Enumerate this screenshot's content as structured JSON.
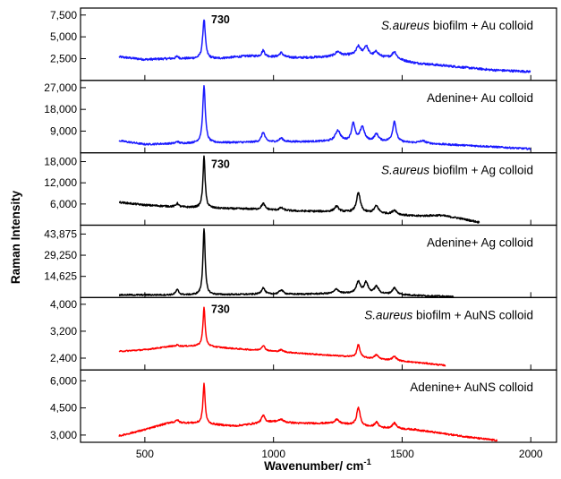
{
  "chart_data": {
    "type": "line",
    "xlabel": "Wavenumber/ cm",
    "xlabel_superscript": "-1",
    "ylabel": "Raman Intensity",
    "x_ticks": [
      500,
      1000,
      1500,
      2000
    ],
    "xlim": [
      250,
      2100
    ],
    "grid": false,
    "panels": [
      {
        "label_italic": "S.aureus",
        "label": " biofilm + Au colloid",
        "peak_label": "730",
        "color": "#1a1aff",
        "ylim": [
          0,
          8300
        ],
        "y_ticks": [
          2500,
          5000,
          7500
        ],
        "y_tick_labels": [
          "2,500",
          "5,000",
          "7,500"
        ],
        "baseline": [
          [
            400,
            2700
          ],
          [
            500,
            2400
          ],
          [
            600,
            2500
          ],
          [
            700,
            2500
          ],
          [
            780,
            2500
          ],
          [
            900,
            2800
          ],
          [
            1100,
            2600
          ],
          [
            1200,
            2700
          ],
          [
            1300,
            2900
          ],
          [
            1450,
            2600
          ],
          [
            1550,
            2000
          ],
          [
            1700,
            1600
          ],
          [
            1850,
            1200
          ],
          [
            2000,
            1000
          ]
        ],
        "peaks": [
          [
            730,
            4500,
            6
          ],
          [
            626,
            250,
            6
          ],
          [
            960,
            700,
            7
          ],
          [
            1030,
            500,
            9
          ],
          [
            1250,
            500,
            12
          ],
          [
            1330,
            1000,
            10
          ],
          [
            1360,
            1100,
            10
          ],
          [
            1400,
            550,
            10
          ],
          [
            1470,
            800,
            10
          ]
        ],
        "noise": 120
      },
      {
        "label_italic": "",
        "label": "Adenine+ Au colloid",
        "peak_label": "",
        "color": "#1a1aff",
        "ylim": [
          0,
          30000
        ],
        "y_ticks": [
          9000,
          18000,
          27000
        ],
        "y_tick_labels": [
          "9,000",
          "18,000",
          "27,000"
        ],
        "baseline": [
          [
            400,
            5000
          ],
          [
            500,
            3500
          ],
          [
            600,
            3800
          ],
          [
            800,
            4200
          ],
          [
            1000,
            4500
          ],
          [
            1200,
            4700
          ],
          [
            1450,
            4600
          ],
          [
            1600,
            3800
          ],
          [
            1800,
            2800
          ],
          [
            2000,
            1600
          ]
        ],
        "peaks": [
          [
            730,
            23500,
            6
          ],
          [
            626,
            800,
            6
          ],
          [
            960,
            4000,
            8
          ],
          [
            1030,
            1500,
            9
          ],
          [
            1250,
            4500,
            12
          ],
          [
            1310,
            7500,
            8
          ],
          [
            1345,
            6000,
            10
          ],
          [
            1400,
            3000,
            10
          ],
          [
            1470,
            8500,
            8
          ],
          [
            1580,
            1000,
            15
          ]
        ],
        "noise": 350
      },
      {
        "label_italic": "S.aureus",
        "label": " biofilm + Ag colloid",
        "peak_label": "730",
        "color": "#000000",
        "ylim": [
          0,
          20500
        ],
        "y_ticks": [
          6000,
          12000,
          18000
        ],
        "y_tick_labels": [
          "6,000",
          "12,000",
          "18,000"
        ],
        "baseline": [
          [
            400,
            6500
          ],
          [
            500,
            5700
          ],
          [
            620,
            5200
          ],
          [
            760,
            4800
          ],
          [
            900,
            4600
          ],
          [
            1100,
            4000
          ],
          [
            1250,
            3800
          ],
          [
            1400,
            3400
          ],
          [
            1550,
            2600
          ],
          [
            1650,
            2800
          ],
          [
            1720,
            2000
          ],
          [
            1800,
            800
          ]
        ],
        "peaks": [
          [
            730,
            14500,
            5
          ],
          [
            626,
            1000,
            6
          ],
          [
            960,
            1700,
            8
          ],
          [
            1030,
            700,
            9
          ],
          [
            1245,
            1500,
            10
          ],
          [
            1330,
            5500,
            9
          ],
          [
            1400,
            2000,
            10
          ],
          [
            1470,
            1200,
            10
          ]
        ],
        "noise": 250
      },
      {
        "label_italic": "",
        "label": "Adenine+ Ag colloid",
        "peak_label": "",
        "color": "#000000",
        "ylim": [
          0,
          50000
        ],
        "y_ticks": [
          14625,
          29250,
          43875
        ],
        "y_tick_labels": [
          "14,625",
          "29,250",
          "43,875"
        ],
        "baseline": [
          [
            400,
            1800
          ],
          [
            700,
            1800
          ],
          [
            900,
            2200
          ],
          [
            1100,
            2300
          ],
          [
            1250,
            2800
          ],
          [
            1400,
            2500
          ],
          [
            1550,
            1500
          ],
          [
            1700,
            500
          ]
        ],
        "peaks": [
          [
            730,
            46000,
            5
          ],
          [
            626,
            3500,
            7
          ],
          [
            960,
            4500,
            8
          ],
          [
            1030,
            3000,
            9
          ],
          [
            1245,
            3000,
            10
          ],
          [
            1330,
            8000,
            10
          ],
          [
            1360,
            7500,
            9
          ],
          [
            1400,
            5000,
            10
          ],
          [
            1470,
            4500,
            10
          ]
        ],
        "noise": 500
      },
      {
        "label_italic": "S.aureus",
        "label": " biofilm + AuNS colloid",
        "peak_label": "730",
        "color": "#ff0000",
        "ylim": [
          2050,
          4200
        ],
        "y_ticks": [
          2400,
          3200,
          4000
        ],
        "y_tick_labels": [
          "2,400",
          "3,200",
          "4,000"
        ],
        "baseline": [
          [
            400,
            2600
          ],
          [
            500,
            2650
          ],
          [
            600,
            2750
          ],
          [
            720,
            2760
          ],
          [
            850,
            2680
          ],
          [
            1000,
            2600
          ],
          [
            1150,
            2520
          ],
          [
            1300,
            2440
          ],
          [
            1450,
            2340
          ],
          [
            1600,
            2240
          ],
          [
            1670,
            2180
          ]
        ],
        "peaks": [
          [
            730,
            1150,
            5
          ],
          [
            626,
            40,
            6
          ],
          [
            960,
            150,
            8
          ],
          [
            1030,
            60,
            9
          ],
          [
            1330,
            380,
            7
          ],
          [
            1400,
            120,
            9
          ],
          [
            1470,
            120,
            10
          ]
        ],
        "noise": 18
      },
      {
        "label_italic": "",
        "label": "Adenine+ AuNS colloid",
        "peak_label": "",
        "color": "#ff0000",
        "ylim": [
          2600,
          6600
        ],
        "y_ticks": [
          3000,
          4500,
          6000
        ],
        "y_tick_labels": [
          "3,000",
          "4,500",
          "6,000"
        ],
        "baseline": [
          [
            400,
            2950
          ],
          [
            500,
            3300
          ],
          [
            600,
            3700
          ],
          [
            700,
            3650
          ],
          [
            850,
            3500
          ],
          [
            1000,
            3750
          ],
          [
            1100,
            3650
          ],
          [
            1250,
            3650
          ],
          [
            1400,
            3400
          ],
          [
            1550,
            3300
          ],
          [
            1650,
            3100
          ],
          [
            1780,
            2850
          ],
          [
            1870,
            2700
          ]
        ],
        "peaks": [
          [
            730,
            2200,
            5
          ],
          [
            626,
            150,
            6
          ],
          [
            960,
            400,
            8
          ],
          [
            1030,
            150,
            9
          ],
          [
            1245,
            200,
            10
          ],
          [
            1330,
            1000,
            8
          ],
          [
            1400,
            300,
            9
          ],
          [
            1470,
            300,
            10
          ]
        ],
        "noise": 45
      }
    ]
  }
}
